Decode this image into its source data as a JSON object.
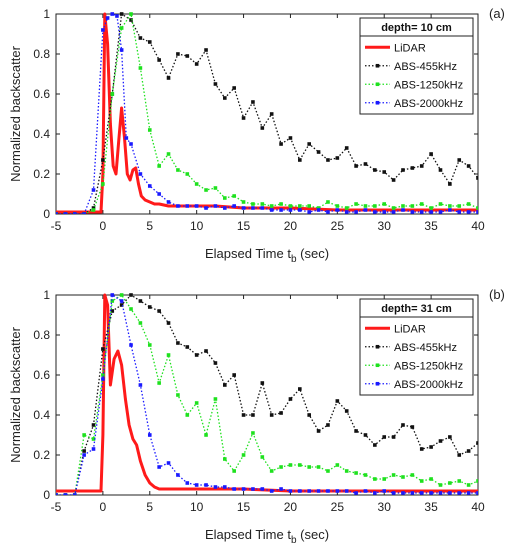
{
  "chart_data": [
    {
      "type": "line",
      "panel_label": "(a)",
      "legend_title": "depth= 10 cm",
      "xlabel_main": "Elapsed Time t",
      "xlabel_sub": "b",
      "xlabel_tail": " (sec)",
      "ylabel": "Normalized backscatter",
      "xlim": [
        -5,
        40
      ],
      "ylim": [
        0,
        1
      ],
      "xticks": [
        -5,
        0,
        5,
        10,
        15,
        20,
        25,
        30,
        35,
        40
      ],
      "yticks": [
        0,
        0.2,
        0.4,
        0.6,
        0.8,
        1
      ],
      "ytick_labels": [
        "0",
        "0.2",
        "0.4",
        "0.6",
        "0.8",
        "1"
      ],
      "legend_position": "top-right",
      "series": [
        {
          "name": "LiDAR",
          "color": "#ff1a1a",
          "style": "solid",
          "x": [
            -5,
            -3,
            -1,
            -0.2,
            0,
            0.2,
            0.5,
            0.8,
            1.1,
            1.4,
            1.7,
            2.0,
            2.3,
            2.6,
            2.9,
            3.2,
            3.5,
            3.8,
            4.1,
            4.5,
            5,
            5.5,
            6,
            7,
            8,
            9,
            10,
            12,
            15,
            20,
            25,
            30,
            35,
            40
          ],
          "y": [
            0.01,
            0.01,
            0.01,
            0.01,
            0.2,
            1.0,
            0.85,
            0.45,
            0.24,
            0.2,
            0.37,
            0.53,
            0.38,
            0.2,
            0.17,
            0.22,
            0.23,
            0.15,
            0.09,
            0.07,
            0.06,
            0.05,
            0.05,
            0.04,
            0.04,
            0.04,
            0.04,
            0.04,
            0.03,
            0.03,
            0.02,
            0.02,
            0.02,
            0.02
          ]
        },
        {
          "name": "ABS-455kHz",
          "color": "#111111",
          "style": "dotted",
          "x": [
            -5,
            -4,
            -3,
            -2,
            -1,
            0,
            1,
            2,
            3,
            4,
            5,
            6,
            7,
            8,
            9,
            10,
            11,
            12,
            13,
            14,
            15,
            16,
            17,
            18,
            19,
            20,
            21,
            22,
            23,
            24,
            25,
            26,
            27,
            28,
            29,
            30,
            31,
            32,
            33,
            34,
            35,
            36,
            37,
            38,
            39,
            40
          ],
          "y": [
            0.0,
            0.0,
            0.0,
            0.0,
            0.03,
            0.27,
            0.6,
            1.0,
            0.97,
            0.88,
            0.86,
            0.77,
            0.68,
            0.8,
            0.79,
            0.75,
            0.82,
            0.65,
            0.58,
            0.63,
            0.48,
            0.56,
            0.43,
            0.5,
            0.35,
            0.38,
            0.27,
            0.35,
            0.31,
            0.27,
            0.28,
            0.33,
            0.24,
            0.25,
            0.22,
            0.21,
            0.17,
            0.22,
            0.23,
            0.24,
            0.3,
            0.22,
            0.15,
            0.27,
            0.24,
            0.18
          ]
        },
        {
          "name": "ABS-1250kHz",
          "color": "#1ee11e",
          "style": "dotted",
          "x": [
            -5,
            -4,
            -3,
            -2,
            -1,
            0,
            1,
            2,
            3,
            4,
            5,
            6,
            7,
            8,
            9,
            10,
            11,
            12,
            13,
            14,
            15,
            16,
            17,
            18,
            19,
            20,
            21,
            22,
            23,
            24,
            25,
            26,
            27,
            28,
            29,
            30,
            31,
            32,
            33,
            34,
            35,
            36,
            37,
            38,
            39,
            40
          ],
          "y": [
            0.0,
            0.0,
            0.0,
            0.0,
            0.02,
            0.15,
            0.6,
            0.93,
            1.0,
            0.73,
            0.42,
            0.24,
            0.3,
            0.22,
            0.2,
            0.15,
            0.12,
            0.13,
            0.08,
            0.09,
            0.06,
            0.05,
            0.05,
            0.04,
            0.05,
            0.04,
            0.04,
            0.04,
            0.03,
            0.06,
            0.04,
            0.03,
            0.05,
            0.04,
            0.04,
            0.05,
            0.03,
            0.04,
            0.04,
            0.05,
            0.03,
            0.05,
            0.04,
            0.04,
            0.05,
            0.03
          ]
        },
        {
          "name": "ABS-2000kHz",
          "color": "#1a1aff",
          "style": "dotted",
          "x": [
            -5,
            -4,
            -3,
            -2,
            -1,
            0,
            0.5,
            1,
            1.5,
            2,
            2.5,
            3,
            4,
            5,
            6,
            7,
            8,
            9,
            10,
            11,
            12,
            13,
            14,
            15,
            16,
            17,
            18,
            19,
            20,
            21,
            22,
            23,
            24,
            25,
            26,
            27,
            28,
            29,
            30,
            31,
            32,
            33,
            34,
            35,
            36,
            37,
            38,
            39,
            40
          ],
          "y": [
            0.0,
            0.0,
            0.0,
            0.0,
            0.12,
            0.92,
            0.98,
            1.0,
            0.99,
            0.82,
            0.38,
            0.35,
            0.2,
            0.14,
            0.1,
            0.06,
            0.04,
            0.04,
            0.04,
            0.03,
            0.04,
            0.03,
            0.04,
            0.03,
            0.03,
            0.03,
            0.02,
            0.02,
            0.02,
            0.02,
            0.01,
            0.02,
            0.01,
            0.02,
            0.01,
            0.01,
            0.02,
            0.01,
            0.01,
            0.01,
            0.02,
            0.01,
            0.01,
            0.01,
            0.01,
            0.02,
            0.01,
            0.01,
            0.01
          ]
        }
      ]
    },
    {
      "type": "line",
      "panel_label": "(b)",
      "legend_title": "depth= 31 cm",
      "xlabel_main": "Elapsed Time t",
      "xlabel_sub": "b",
      "xlabel_tail": " (sec)",
      "ylabel": "Normalized backscatter",
      "xlim": [
        -5,
        40
      ],
      "ylim": [
        0,
        1
      ],
      "xticks": [
        -5,
        0,
        5,
        10,
        15,
        20,
        25,
        30,
        35,
        40
      ],
      "yticks": [
        0,
        0.2,
        0.4,
        0.6,
        0.8,
        1
      ],
      "ytick_labels": [
        "0",
        "0.2",
        "0.4",
        "0.6",
        "0.8",
        "1"
      ],
      "legend_position": "top-right",
      "series": [
        {
          "name": "LiDAR",
          "color": "#ff1a1a",
          "style": "solid",
          "x": [
            -5,
            -3,
            -1,
            -0.2,
            0,
            0.2,
            0.5,
            0.8,
            1.2,
            1.6,
            2.0,
            2.4,
            2.8,
            3.2,
            3.6,
            4.0,
            4.5,
            5,
            5.5,
            6,
            7,
            8,
            10,
            15,
            20,
            25,
            30,
            35,
            40
          ],
          "y": [
            0.02,
            0.02,
            0.02,
            0.02,
            0.3,
            1.0,
            0.95,
            0.55,
            0.68,
            0.72,
            0.65,
            0.48,
            0.35,
            0.28,
            0.25,
            0.17,
            0.1,
            0.06,
            0.04,
            0.03,
            0.03,
            0.03,
            0.03,
            0.03,
            0.02,
            0.02,
            0.02,
            0.02,
            0.02
          ]
        },
        {
          "name": "ABS-455kHz",
          "color": "#111111",
          "style": "dotted",
          "x": [
            -5,
            -4,
            -3,
            -2,
            -1,
            0,
            1,
            2,
            3,
            4,
            5,
            6,
            7,
            8,
            9,
            10,
            11,
            12,
            13,
            14,
            15,
            16,
            17,
            18,
            19,
            20,
            21,
            22,
            23,
            24,
            25,
            26,
            27,
            28,
            29,
            30,
            31,
            32,
            33,
            34,
            35,
            36,
            37,
            38,
            39,
            40
          ],
          "y": [
            0.0,
            0.0,
            0.0,
            0.22,
            0.35,
            0.73,
            0.92,
            0.95,
            1.0,
            0.97,
            0.94,
            0.92,
            0.86,
            0.76,
            0.74,
            0.7,
            0.72,
            0.66,
            0.55,
            0.6,
            0.4,
            0.4,
            0.56,
            0.4,
            0.41,
            0.48,
            0.53,
            0.4,
            0.32,
            0.35,
            0.47,
            0.42,
            0.32,
            0.3,
            0.25,
            0.29,
            0.29,
            0.35,
            0.34,
            0.23,
            0.24,
            0.27,
            0.29,
            0.2,
            0.22,
            0.26
          ]
        },
        {
          "name": "ABS-1250kHz",
          "color": "#1ee11e",
          "style": "dotted",
          "x": [
            -5,
            -4,
            -3,
            -2,
            -1,
            0,
            1,
            2,
            3,
            4,
            5,
            6,
            7,
            8,
            9,
            10,
            11,
            12,
            13,
            14,
            15,
            16,
            17,
            18,
            19,
            20,
            21,
            22,
            23,
            24,
            25,
            26,
            27,
            28,
            29,
            30,
            31,
            32,
            33,
            34,
            35,
            36,
            37,
            38,
            39,
            40
          ],
          "y": [
            0.0,
            0.0,
            0.0,
            0.3,
            0.28,
            0.6,
            0.97,
            1.0,
            0.93,
            0.86,
            0.75,
            0.56,
            0.7,
            0.5,
            0.4,
            0.46,
            0.3,
            0.48,
            0.18,
            0.12,
            0.2,
            0.31,
            0.19,
            0.12,
            0.14,
            0.15,
            0.15,
            0.14,
            0.14,
            0.12,
            0.15,
            0.12,
            0.11,
            0.1,
            0.08,
            0.08,
            0.1,
            0.09,
            0.1,
            0.07,
            0.08,
            0.05,
            0.06,
            0.07,
            0.05,
            0.07
          ]
        },
        {
          "name": "ABS-2000kHz",
          "color": "#1a1aff",
          "style": "dotted",
          "x": [
            -5,
            -4,
            -3,
            -2,
            -1,
            0,
            1,
            2,
            3,
            4,
            5,
            6,
            7,
            8,
            9,
            10,
            11,
            12,
            13,
            14,
            15,
            16,
            17,
            18,
            19,
            20,
            21,
            22,
            23,
            24,
            25,
            26,
            27,
            28,
            29,
            30,
            31,
            32,
            33,
            34,
            35,
            36,
            37,
            38,
            39,
            40
          ],
          "y": [
            0.0,
            0.0,
            0.0,
            0.2,
            0.23,
            0.58,
            1.0,
            0.97,
            0.75,
            0.55,
            0.3,
            0.14,
            0.16,
            0.1,
            0.06,
            0.05,
            0.05,
            0.04,
            0.04,
            0.03,
            0.03,
            0.03,
            0.03,
            0.02,
            0.03,
            0.02,
            0.02,
            0.02,
            0.02,
            0.02,
            0.02,
            0.02,
            0.01,
            0.02,
            0.01,
            0.02,
            0.01,
            0.01,
            0.01,
            0.01,
            0.01,
            0.01,
            0.01,
            0.01,
            0.01,
            0.01
          ]
        }
      ]
    }
  ]
}
